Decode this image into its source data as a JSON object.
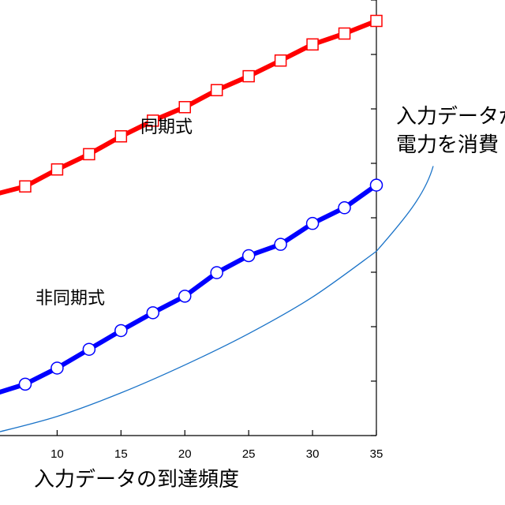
{
  "chart_data": {
    "type": "line",
    "xlabel": "入力データの到達頻度",
    "ylabel": "",
    "xlim": [
      5,
      35
    ],
    "ylim": [
      0,
      100
    ],
    "x_ticks": [
      10,
      15,
      20,
      25,
      30,
      35
    ],
    "x_tick_labels": [
      "10",
      "15",
      "20",
      "25",
      "30",
      "35"
    ],
    "grid": false,
    "series": [
      {
        "name": "同期式",
        "color": "#ff0000",
        "marker": "square",
        "x": [
          5,
          7.5,
          10,
          12.5,
          15,
          17.5,
          20,
          22.5,
          25,
          27.5,
          30,
          32.5,
          35
        ],
        "y": [
          55.3,
          57.2,
          61.1,
          64.6,
          68.7,
          72.3,
          75.4,
          79.3,
          82.5,
          86.1,
          89.8,
          92.3,
          95.2
        ]
      },
      {
        "name": "非同期式",
        "color": "#0000ff",
        "marker": "circle",
        "x": [
          5,
          7.5,
          10,
          12.5,
          15,
          17.5,
          20,
          22.5,
          25,
          27.5,
          30,
          32.5,
          35
        ],
        "y": [
          9.5,
          11.8,
          15.5,
          19.8,
          24.1,
          28.2,
          32.0,
          37.4,
          41.3,
          43.9,
          48.7,
          52.3,
          57.5
        ]
      },
      {
        "name": "",
        "color": "#1a73c8",
        "marker": "none",
        "x": [
          5,
          10,
          15,
          20,
          25,
          30,
          35
        ],
        "y": [
          0.5,
          4.4,
          9.8,
          16.2,
          23.4,
          31.8,
          42.3
        ]
      }
    ],
    "annotation": [
      "入力データが",
      "電力を消費"
    ]
  }
}
